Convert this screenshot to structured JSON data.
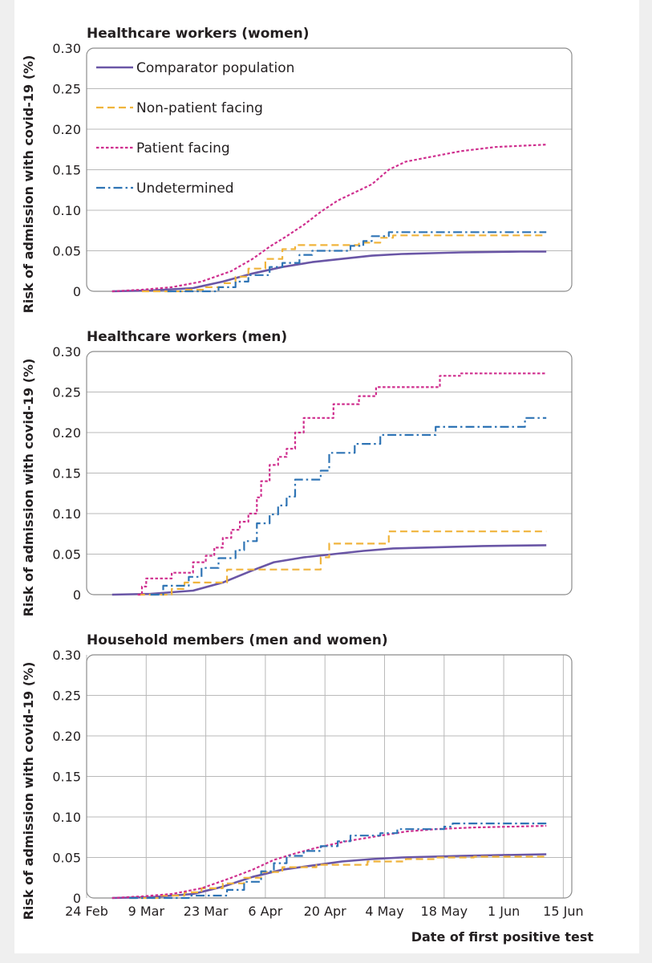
{
  "colors": {
    "comparator": "#6a56a6",
    "non_patient": "#f0b43c",
    "patient": "#cf2e8e",
    "undetermined": "#2f74b5",
    "grid": "#b9b9b9",
    "frame": "#8c8c8c"
  },
  "legend": [
    {
      "key": "comparator",
      "label": "Comparator population",
      "style": "solid"
    },
    {
      "key": "non_patient",
      "label": "Non-patient facing",
      "style": "dashed"
    },
    {
      "key": "patient",
      "label": "Patient facing",
      "style": "dotted"
    },
    {
      "key": "undetermined",
      "label": "Undetermined",
      "style": "dashdot"
    }
  ],
  "chart_data": [
    {
      "type": "line",
      "title": "Healthcare workers (women)",
      "ylabel": "Risk of admission with covid-19 (%)",
      "ylim": [
        0,
        0.3
      ],
      "yticks": [
        0,
        0.05,
        0.1,
        0.15,
        0.2,
        0.25,
        0.3
      ],
      "ytick_labels": [
        "0",
        "0.05",
        "0.10",
        "0.15",
        "0.20",
        "0.25",
        "0.30"
      ],
      "grid": true,
      "legend_position": "top-left",
      "series": [
        {
          "name": "Comparator population",
          "key": "comparator",
          "style": "solid",
          "step": false,
          "points": [
            [
              "2020-03-01",
              0
            ],
            [
              "2020-03-10",
              0.001
            ],
            [
              "2020-03-20",
              0.004
            ],
            [
              "2020-03-27",
              0.012
            ],
            [
              "2020-04-03",
              0.022
            ],
            [
              "2020-04-10",
              0.03
            ],
            [
              "2020-04-17",
              0.036
            ],
            [
              "2020-04-24",
              0.04
            ],
            [
              "2020-05-01",
              0.044
            ],
            [
              "2020-05-08",
              0.046
            ],
            [
              "2020-05-15",
              0.047
            ],
            [
              "2020-05-22",
              0.048
            ],
            [
              "2020-06-05",
              0.049
            ],
            [
              "2020-06-11",
              0.049
            ]
          ]
        },
        {
          "name": "Non-patient facing",
          "key": "non_patient",
          "style": "dashed",
          "step": true,
          "points": [
            [
              "2020-03-08",
              0
            ],
            [
              "2020-03-18",
              0.002
            ],
            [
              "2020-03-23",
              0.005
            ],
            [
              "2020-03-27",
              0.01
            ],
            [
              "2020-03-30",
              0.018
            ],
            [
              "2020-04-02",
              0.028
            ],
            [
              "2020-04-06",
              0.04
            ],
            [
              "2020-04-10",
              0.052
            ],
            [
              "2020-04-13",
              0.057
            ],
            [
              "2020-04-28",
              0.06
            ],
            [
              "2020-05-03",
              0.066
            ],
            [
              "2020-05-06",
              0.069
            ],
            [
              "2020-06-11",
              0.069
            ]
          ]
        },
        {
          "name": "Patient facing",
          "key": "patient",
          "style": "dotted",
          "step": false,
          "points": [
            [
              "2020-03-01",
              0
            ],
            [
              "2020-03-08",
              0.002
            ],
            [
              "2020-03-15",
              0.005
            ],
            [
              "2020-03-22",
              0.012
            ],
            [
              "2020-03-29",
              0.025
            ],
            [
              "2020-04-03",
              0.04
            ],
            [
              "2020-04-07",
              0.055
            ],
            [
              "2020-04-11",
              0.068
            ],
            [
              "2020-04-15",
              0.082
            ],
            [
              "2020-04-19",
              0.098
            ],
            [
              "2020-04-23",
              0.112
            ],
            [
              "2020-04-27",
              0.122
            ],
            [
              "2020-05-01",
              0.132
            ],
            [
              "2020-05-05",
              0.15
            ],
            [
              "2020-05-09",
              0.16
            ],
            [
              "2020-05-15",
              0.166
            ],
            [
              "2020-05-22",
              0.173
            ],
            [
              "2020-05-30",
              0.178
            ],
            [
              "2020-06-11",
              0.181
            ]
          ]
        },
        {
          "name": "Undetermined",
          "key": "undetermined",
          "style": "dashdot",
          "step": true,
          "points": [
            [
              "2020-03-14",
              0
            ],
            [
              "2020-03-26",
              0.005
            ],
            [
              "2020-03-30",
              0.012
            ],
            [
              "2020-04-02",
              0.02
            ],
            [
              "2020-04-07",
              0.03
            ],
            [
              "2020-04-10",
              0.035
            ],
            [
              "2020-04-14",
              0.045
            ],
            [
              "2020-04-17",
              0.05
            ],
            [
              "2020-04-26",
              0.056
            ],
            [
              "2020-04-29",
              0.062
            ],
            [
              "2020-05-01",
              0.068
            ],
            [
              "2020-05-05",
              0.073
            ],
            [
              "2020-06-11",
              0.073
            ]
          ]
        }
      ]
    },
    {
      "type": "line",
      "title": "Healthcare workers (men)",
      "ylabel": "Risk of admission with covid-19 (%)",
      "ylim": [
        0,
        0.3
      ],
      "yticks": [
        0,
        0.05,
        0.1,
        0.15,
        0.2,
        0.25,
        0.3
      ],
      "ytick_labels": [
        "0",
        "0.05",
        "0.10",
        "0.15",
        "0.20",
        "0.25",
        "0.30"
      ],
      "grid": true,
      "series": [
        {
          "name": "Comparator population",
          "key": "comparator",
          "style": "solid",
          "step": false,
          "points": [
            [
              "2020-03-01",
              0
            ],
            [
              "2020-03-10",
              0.001
            ],
            [
              "2020-03-20",
              0.005
            ],
            [
              "2020-03-27",
              0.015
            ],
            [
              "2020-04-03",
              0.03
            ],
            [
              "2020-04-08",
              0.04
            ],
            [
              "2020-04-15",
              0.046
            ],
            [
              "2020-04-22",
              0.05
            ],
            [
              "2020-04-29",
              0.054
            ],
            [
              "2020-05-06",
              0.057
            ],
            [
              "2020-05-13",
              0.058
            ],
            [
              "2020-05-20",
              0.059
            ],
            [
              "2020-05-27",
              0.06
            ],
            [
              "2020-06-11",
              0.061
            ]
          ]
        },
        {
          "name": "Non-patient facing",
          "key": "non_patient",
          "style": "dashed",
          "step": true,
          "points": [
            [
              "2020-03-07",
              0
            ],
            [
              "2020-03-15",
              0.007
            ],
            [
              "2020-03-18",
              0.015
            ],
            [
              "2020-03-28",
              0.031
            ],
            [
              "2020-04-19",
              0.046
            ],
            [
              "2020-04-21",
              0.063
            ],
            [
              "2020-05-05",
              0.078
            ],
            [
              "2020-06-11",
              0.078
            ]
          ]
        },
        {
          "name": "Patient facing",
          "key": "patient",
          "style": "dotted",
          "step": true,
          "points": [
            [
              "2020-03-07",
              0
            ],
            [
              "2020-03-08",
              0.01
            ],
            [
              "2020-03-09",
              0.02
            ],
            [
              "2020-03-15",
              0.027
            ],
            [
              "2020-03-20",
              0.04
            ],
            [
              "2020-03-23",
              0.048
            ],
            [
              "2020-03-25",
              0.058
            ],
            [
              "2020-03-27",
              0.07
            ],
            [
              "2020-03-29",
              0.08
            ],
            [
              "2020-03-31",
              0.09
            ],
            [
              "2020-04-02",
              0.1
            ],
            [
              "2020-04-04",
              0.12
            ],
            [
              "2020-04-05",
              0.14
            ],
            [
              "2020-04-07",
              0.16
            ],
            [
              "2020-04-09",
              0.17
            ],
            [
              "2020-04-11",
              0.18
            ],
            [
              "2020-04-13",
              0.2
            ],
            [
              "2020-04-15",
              0.218
            ],
            [
              "2020-04-22",
              0.235
            ],
            [
              "2020-04-28",
              0.245
            ],
            [
              "2020-05-02",
              0.256
            ],
            [
              "2020-05-17",
              0.27
            ],
            [
              "2020-05-22",
              0.273
            ],
            [
              "2020-06-11",
              0.273
            ]
          ]
        },
        {
          "name": "Undetermined",
          "key": "undetermined",
          "style": "dashdot",
          "step": true,
          "points": [
            [
              "2020-03-10",
              0
            ],
            [
              "2020-03-13",
              0.011
            ],
            [
              "2020-03-19",
              0.022
            ],
            [
              "2020-03-22",
              0.033
            ],
            [
              "2020-03-26",
              0.045
            ],
            [
              "2020-03-30",
              0.055
            ],
            [
              "2020-04-01",
              0.066
            ],
            [
              "2020-04-04",
              0.088
            ],
            [
              "2020-04-07",
              0.099
            ],
            [
              "2020-04-09",
              0.11
            ],
            [
              "2020-04-11",
              0.121
            ],
            [
              "2020-04-13",
              0.142
            ],
            [
              "2020-04-19",
              0.153
            ],
            [
              "2020-04-21",
              0.175
            ],
            [
              "2020-04-27",
              0.186
            ],
            [
              "2020-05-03",
              0.197
            ],
            [
              "2020-05-16",
              0.207
            ],
            [
              "2020-06-06",
              0.218
            ],
            [
              "2020-06-11",
              0.218
            ]
          ]
        }
      ]
    },
    {
      "type": "line",
      "title": "Household members (men and women)",
      "ylabel": "Risk of admission with covid-19 (%)",
      "xlabel": "Date of first positive test",
      "ylim": [
        0,
        0.3
      ],
      "yticks": [
        0,
        0.05,
        0.1,
        0.15,
        0.2,
        0.25,
        0.3
      ],
      "ytick_labels": [
        "0",
        "0.05",
        "0.10",
        "0.15",
        "0.20",
        "0.25",
        "0.30"
      ],
      "xticks": [
        "2020-02-24",
        "2020-03-09",
        "2020-03-23",
        "2020-04-06",
        "2020-04-20",
        "2020-05-04",
        "2020-05-18",
        "2020-06-01",
        "2020-06-15"
      ],
      "xtick_labels": [
        "24 Feb",
        "9 Mar",
        "23 Mar",
        "6 Apr",
        "20 Apr",
        "4 May",
        "18 May",
        "1 Jun",
        "15 Jun"
      ],
      "grid": true,
      "series": [
        {
          "name": "Comparator population",
          "key": "comparator",
          "style": "solid",
          "step": false,
          "points": [
            [
              "2020-03-01",
              0
            ],
            [
              "2020-03-10",
              0.001
            ],
            [
              "2020-03-20",
              0.005
            ],
            [
              "2020-03-27",
              0.014
            ],
            [
              "2020-04-03",
              0.026
            ],
            [
              "2020-04-10",
              0.035
            ],
            [
              "2020-04-17",
              0.04
            ],
            [
              "2020-04-24",
              0.045
            ],
            [
              "2020-05-01",
              0.048
            ],
            [
              "2020-05-08",
              0.05
            ],
            [
              "2020-05-15",
              0.051
            ],
            [
              "2020-05-22",
              0.052
            ],
            [
              "2020-06-11",
              0.054
            ]
          ]
        },
        {
          "name": "Non-patient facing",
          "key": "non_patient",
          "style": "dashed",
          "step": true,
          "points": [
            [
              "2020-03-05",
              0
            ],
            [
              "2020-03-12",
              0.003
            ],
            [
              "2020-03-18",
              0.007
            ],
            [
              "2020-03-22",
              0.012
            ],
            [
              "2020-03-27",
              0.018
            ],
            [
              "2020-04-01",
              0.025
            ],
            [
              "2020-04-05",
              0.032
            ],
            [
              "2020-04-10",
              0.038
            ],
            [
              "2020-04-18",
              0.041
            ],
            [
              "2020-04-30",
              0.045
            ],
            [
              "2020-05-09",
              0.048
            ],
            [
              "2020-05-16",
              0.05
            ],
            [
              "2020-05-25",
              0.051
            ],
            [
              "2020-06-11",
              0.051
            ]
          ]
        },
        {
          "name": "Patient facing",
          "key": "patient",
          "style": "dotted",
          "step": false,
          "points": [
            [
              "2020-03-01",
              0
            ],
            [
              "2020-03-08",
              0.002
            ],
            [
              "2020-03-15",
              0.005
            ],
            [
              "2020-03-22",
              0.012
            ],
            [
              "2020-03-29",
              0.025
            ],
            [
              "2020-04-03",
              0.035
            ],
            [
              "2020-04-08",
              0.047
            ],
            [
              "2020-04-13",
              0.055
            ],
            [
              "2020-04-18",
              0.062
            ],
            [
              "2020-04-25",
              0.07
            ],
            [
              "2020-05-02",
              0.076
            ],
            [
              "2020-05-09",
              0.082
            ],
            [
              "2020-05-16",
              0.085
            ],
            [
              "2020-05-25",
              0.087
            ],
            [
              "2020-06-11",
              0.089
            ]
          ]
        },
        {
          "name": "Undetermined",
          "key": "undetermined",
          "style": "dashdot",
          "step": true,
          "points": [
            [
              "2020-03-05",
              0
            ],
            [
              "2020-03-19",
              0.003
            ],
            [
              "2020-03-28",
              0.01
            ],
            [
              "2020-04-01",
              0.02
            ],
            [
              "2020-04-05",
              0.033
            ],
            [
              "2020-04-08",
              0.043
            ],
            [
              "2020-04-11",
              0.052
            ],
            [
              "2020-04-15",
              0.058
            ],
            [
              "2020-04-19",
              0.064
            ],
            [
              "2020-04-23",
              0.07
            ],
            [
              "2020-04-26",
              0.077
            ],
            [
              "2020-05-03",
              0.08
            ],
            [
              "2020-05-07",
              0.085
            ],
            [
              "2020-05-18",
              0.088
            ],
            [
              "2020-05-20",
              0.092
            ],
            [
              "2020-06-11",
              0.092
            ]
          ]
        }
      ]
    }
  ]
}
